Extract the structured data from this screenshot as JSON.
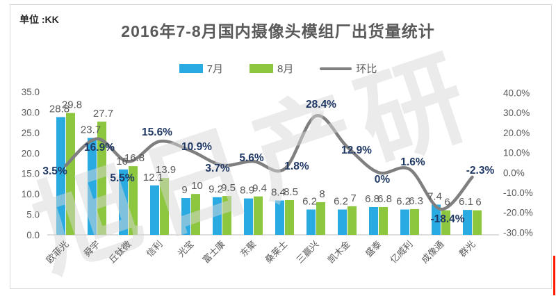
{
  "meta": {
    "unit_label": "单位 :KK"
  },
  "title": "2016年7-8月国内摄像头模组厂出货量统计",
  "watermark": "旭日产研",
  "legend": [
    {
      "label": "7月",
      "type": "swatch",
      "color": "#29ABE2"
    },
    {
      "label": "8月",
      "type": "swatch",
      "color": "#8DC63F"
    },
    {
      "label": "环比",
      "type": "line",
      "color": "#7F7F7F"
    }
  ],
  "colors": {
    "jul_bar": "#29ABE2",
    "aug_bar": "#8DC63F",
    "ratio_line": "#7F7F7F",
    "pct_label": "#1F3864",
    "bar_label": "#595959",
    "axis_label": "#595959",
    "axis_line": "#bfbfbf",
    "title": "#595959",
    "watermark": "#d8d8d8"
  },
  "chart_data": {
    "type": "bar+line combo",
    "title": "2016年7-8月国内摄像头模组厂出货量统计",
    "unit": "KK",
    "categories": [
      "欧菲光",
      "舜宇",
      "丘钛微",
      "信利",
      "光宝",
      "富士康",
      "东聚",
      "桑莱士",
      "三赢兴",
      "凯木金",
      "盛泰",
      "亿威利",
      "成像通",
      "群光"
    ],
    "series": [
      {
        "name": "7月",
        "type": "bar",
        "axis": "left",
        "values": [
          28.8,
          23.7,
          16,
          12.1,
          9,
          9.2,
          8.9,
          8.4,
          6.2,
          6.2,
          6.8,
          6.2,
          7.4,
          6.1
        ],
        "labels": [
          "28.8",
          "23.7",
          "16",
          "12.1",
          "9",
          "9.2",
          "8.9",
          "8.4",
          "6.2",
          "6.2",
          "6.8",
          "6.2",
          "7.4",
          "6.1"
        ]
      },
      {
        "name": "8月",
        "type": "bar",
        "axis": "left",
        "values": [
          29.8,
          27.7,
          16.8,
          13.9,
          10,
          9.5,
          9.4,
          8.5,
          8,
          7,
          6.8,
          6.3,
          6,
          6
        ],
        "labels": [
          "29.8",
          "27.7",
          "16.8",
          "13.9",
          "10",
          "9.5",
          "9.4",
          "8.5",
          "8",
          "7",
          "6.8",
          "6.3",
          "6",
          "6"
        ]
      },
      {
        "name": "环比",
        "type": "line",
        "axis": "right",
        "smooth": true,
        "values_pct": [
          3.5,
          16.9,
          5.5,
          15.6,
          10.9,
          3.7,
          5.6,
          1.8,
          28.4,
          12.9,
          0,
          1.6,
          -18.4,
          -2.3
        ],
        "labels": [
          "3.5%",
          "16.9%",
          "5.5%",
          "15.6%",
          "10.9%",
          "3.7%",
          "5.6%",
          "1.8%",
          "28.4%",
          "12.9%",
          "0%",
          "1.6%",
          "-18.4%",
          "-2.3%"
        ]
      }
    ],
    "left_axis": {
      "ticks": [
        "35.0",
        "30.0",
        "25.0",
        "20.0",
        "15.0",
        "10.0",
        "5.0",
        "0.0"
      ],
      "min": 0,
      "max": 35
    },
    "right_axis": {
      "ticks": [
        "40.0%",
        "30.0%",
        "20.0%",
        "10.0%",
        "0.0%",
        "-10.0%",
        "-20.0%",
        "-30.0%"
      ],
      "min": -30,
      "max": 40
    },
    "grid": "off",
    "legend_position": "top-center"
  }
}
